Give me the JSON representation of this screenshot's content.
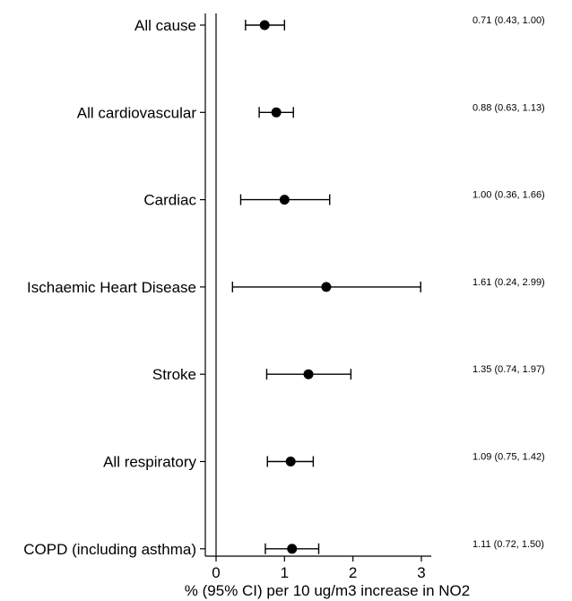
{
  "chart_data": {
    "type": "forest",
    "xlabel": "% (95% CI) per 10 ug/m3 increase in NO2",
    "xlim": [
      -0.1,
      3.15
    ],
    "xticks": [
      0,
      1,
      2,
      3
    ],
    "reference_line": 0,
    "grid": false,
    "rows": [
      {
        "category": "All cause",
        "estimate": 0.71,
        "lower": 0.43,
        "upper": 1.0,
        "label": "0.71 (0.43, 1.00)"
      },
      {
        "category": "All cardiovascular",
        "estimate": 0.88,
        "lower": 0.63,
        "upper": 1.13,
        "label": "0.88 (0.63, 1.13)"
      },
      {
        "category": "Cardiac",
        "estimate": 1.0,
        "lower": 0.36,
        "upper": 1.66,
        "label": "1.00 (0.36, 1.66)"
      },
      {
        "category": "Ischaemic Heart Disease",
        "estimate": 1.61,
        "lower": 0.24,
        "upper": 2.99,
        "label": "1.61 (0.24, 2.99)"
      },
      {
        "category": "Stroke",
        "estimate": 1.35,
        "lower": 0.74,
        "upper": 1.97,
        "label": "1.35 (0.74, 1.97)"
      },
      {
        "category": "All respiratory",
        "estimate": 1.09,
        "lower": 0.75,
        "upper": 1.42,
        "label": "1.09 (0.75, 1.42)"
      },
      {
        "category": "COPD (including asthma)",
        "estimate": 1.11,
        "lower": 0.72,
        "upper": 1.5,
        "label": "1.11 (0.72, 1.50)"
      }
    ]
  }
}
